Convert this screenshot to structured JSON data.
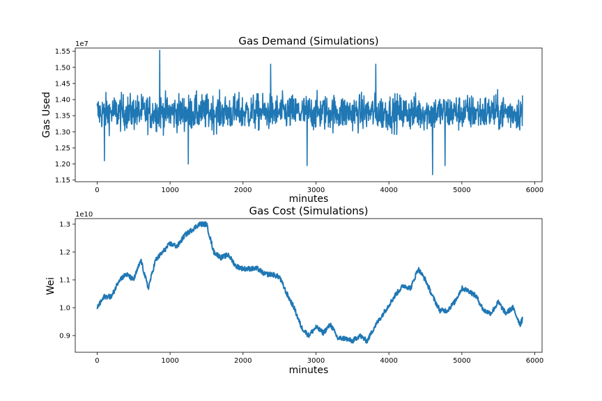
{
  "chart_data": [
    {
      "type": "line",
      "title": "Gas Demand (Simulations)",
      "xlabel": "minutes",
      "ylabel": "Gas Used",
      "y_offset_label": "1e7",
      "xlim": [
        -300,
        6100
      ],
      "ylim": [
        1.145,
        1.56
      ],
      "x_ticks": [
        0,
        1000,
        2000,
        3000,
        4000,
        5000,
        6000
      ],
      "y_ticks": [
        1.15,
        1.2,
        1.25,
        1.3,
        1.35,
        1.4,
        1.45,
        1.5,
        1.55
      ],
      "y_tick_labels": [
        "1.15",
        "1.20",
        "1.25",
        "1.30",
        "1.35",
        "1.40",
        "1.45",
        "1.50",
        "1.55"
      ],
      "color": "#1f77b4",
      "grid": false,
      "series": [
        {
          "x_start": 0,
          "x_end": 5832,
          "points": 5832,
          "mean": 1.36,
          "band_low": 1.27,
          "band_high": 1.45,
          "spikes": [
            {
              "x": 860,
              "y": 1.553
            },
            {
              "x": 4600,
              "y": 1.167
            },
            {
              "x": 100,
              "y": 1.21
            },
            {
              "x": 1250,
              "y": 1.2
            },
            {
              "x": 2880,
              "y": 1.195
            },
            {
              "x": 4770,
              "y": 1.195
            },
            {
              "x": 2380,
              "y": 1.51
            },
            {
              "x": 3820,
              "y": 1.51
            }
          ]
        }
      ]
    },
    {
      "type": "line",
      "title": "Gas Cost (Simulations)",
      "xlabel": "minutes",
      "ylabel": "Wei",
      "y_offset_label": "1e10",
      "xlim": [
        -300,
        6100
      ],
      "ylim": [
        0.84,
        1.32
      ],
      "x_ticks": [
        0,
        1000,
        2000,
        3000,
        4000,
        5000,
        6000
      ],
      "y_ticks": [
        0.9,
        1.0,
        1.1,
        1.2,
        1.3
      ],
      "y_tick_labels": [
        "0.9",
        "1.0",
        "1.1",
        "1.2",
        "1.3"
      ],
      "color": "#1f77b4",
      "grid": false,
      "series": [
        {
          "x": [
            0,
            100,
            200,
            300,
            400,
            500,
            600,
            700,
            800,
            900,
            1000,
            1100,
            1200,
            1300,
            1400,
            1500,
            1600,
            1700,
            1800,
            1900,
            2000,
            2100,
            2200,
            2300,
            2400,
            2500,
            2600,
            2700,
            2800,
            2900,
            3000,
            3100,
            3200,
            3300,
            3400,
            3500,
            3600,
            3700,
            3800,
            3900,
            4000,
            4100,
            4200,
            4300,
            4400,
            4500,
            4600,
            4700,
            4800,
            4900,
            5000,
            5100,
            5200,
            5300,
            5400,
            5500,
            5600,
            5700,
            5800,
            5832
          ],
          "y": [
            1.0,
            1.04,
            1.04,
            1.1,
            1.12,
            1.1,
            1.17,
            1.07,
            1.17,
            1.2,
            1.23,
            1.22,
            1.26,
            1.28,
            1.3,
            1.3,
            1.2,
            1.18,
            1.19,
            1.15,
            1.14,
            1.14,
            1.14,
            1.12,
            1.12,
            1.11,
            1.05,
            1.0,
            0.93,
            0.9,
            0.93,
            0.91,
            0.94,
            0.89,
            0.89,
            0.88,
            0.9,
            0.88,
            0.93,
            0.97,
            1.01,
            1.05,
            1.08,
            1.07,
            1.14,
            1.1,
            1.04,
            0.99,
            0.99,
            1.02,
            1.07,
            1.06,
            1.04,
            0.99,
            0.98,
            1.02,
            0.98,
            1.0,
            0.94,
            0.96
          ]
        }
      ]
    }
  ]
}
